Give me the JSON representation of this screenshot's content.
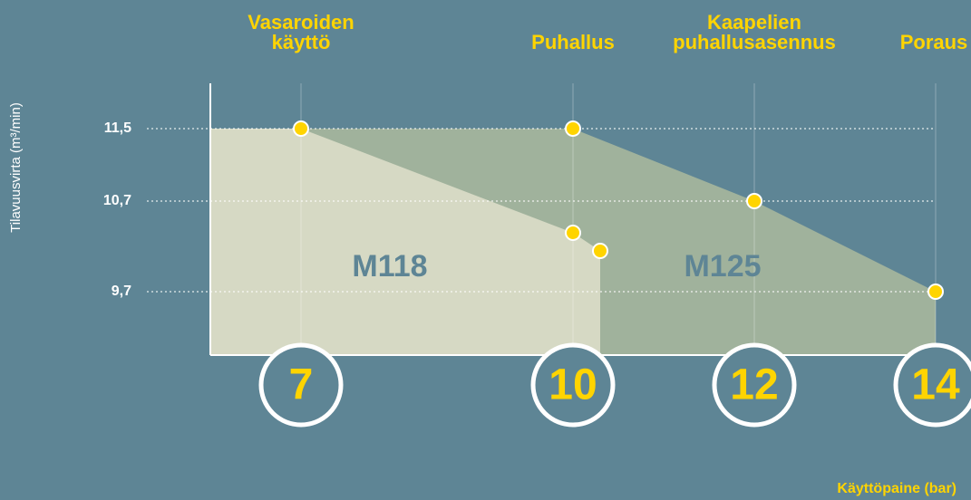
{
  "chart_data": {
    "type": "area",
    "xlabel": "Käyttöpaine (bar)",
    "ylabel": "Tilavuusvirta (m³/min)",
    "xlim": [
      6,
      14
    ],
    "ylim": [
      9,
      12
    ],
    "xticks": [
      7,
      10,
      12,
      14
    ],
    "yticks": [
      {
        "value": 9.7,
        "label": "9,7"
      },
      {
        "value": 10.7,
        "label": "10,7"
      },
      {
        "value": 11.5,
        "label": "11,5"
      }
    ],
    "series": [
      {
        "name": "M125",
        "color": "#a0b29c",
        "x": [
          6,
          10,
          12,
          14
        ],
        "values": [
          11.5,
          11.5,
          10.7,
          9.7
        ]
      },
      {
        "name": "M118",
        "color": "#d6d9c4",
        "x": [
          6,
          7,
          10,
          10.3
        ],
        "values": [
          11.5,
          11.5,
          10.35,
          10.15
        ]
      }
    ],
    "annotations": [
      {
        "text": [
          "Vasaroiden",
          "käyttö"
        ],
        "x": 7
      },
      {
        "text": [
          "Puhallus"
        ],
        "x": 10
      },
      {
        "text": [
          "Kaapelien",
          "puhallusasennus"
        ],
        "x": 12
      },
      {
        "text": [
          "Poraus"
        ],
        "x": 14
      }
    ]
  }
}
